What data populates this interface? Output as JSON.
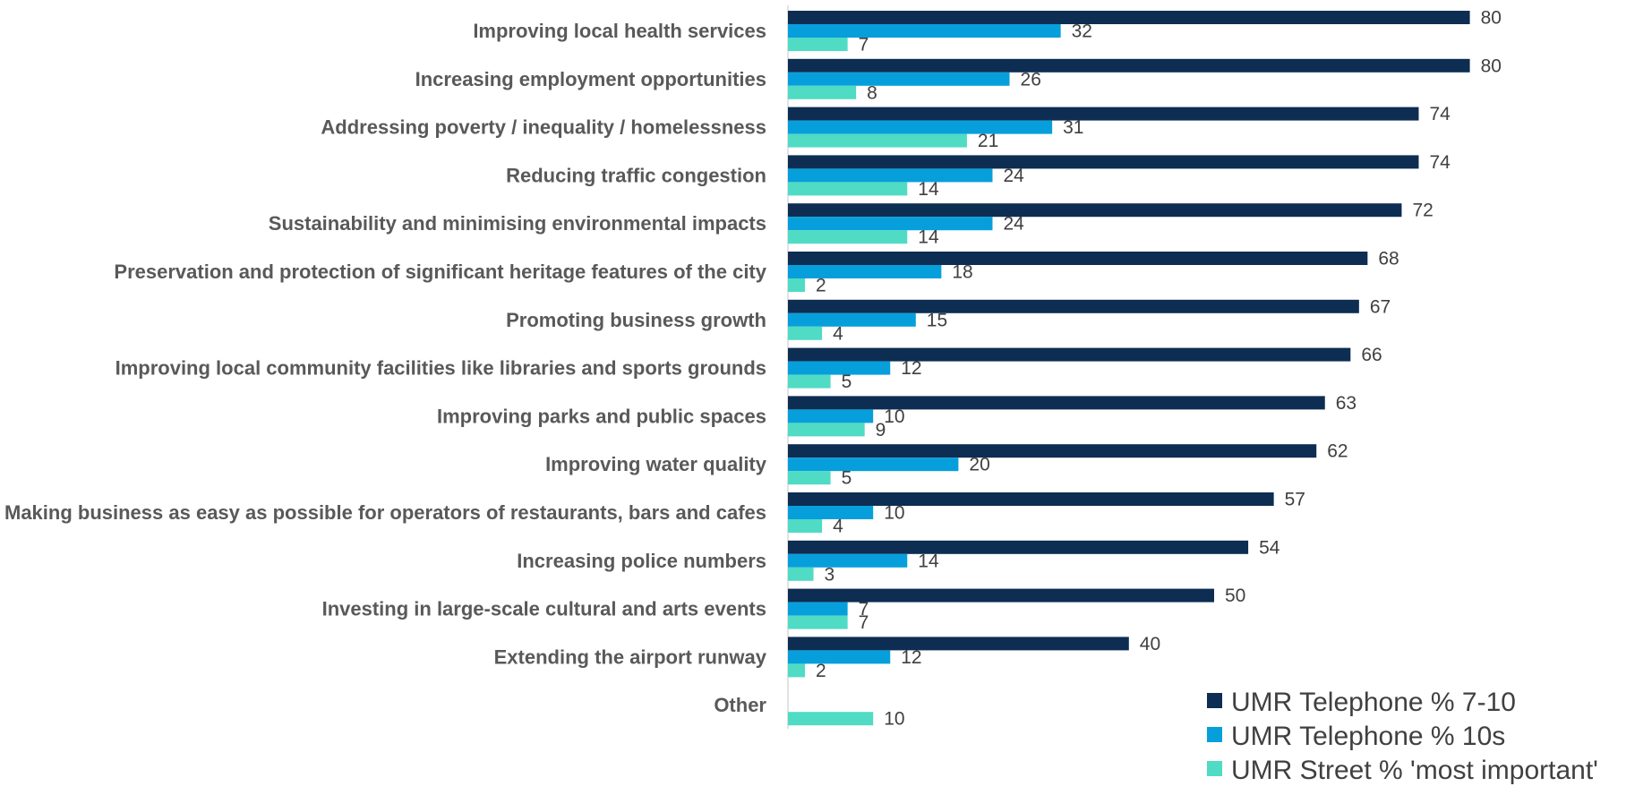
{
  "chart_data": {
    "type": "bar",
    "orientation": "horizontal",
    "categories": [
      "Improving local health services",
      "Increasing employment opportunities",
      "Addressing poverty / inequality / homelessness",
      "Reducing traffic congestion",
      "Sustainability  and minimising environmental impacts",
      "Preservation and protection of significant heritage features of the city",
      "Promoting business growth",
      "Improving local community facilities like libraries and sports grounds",
      "Improving parks and public spaces",
      "Improving water quality",
      "Making business as easy as possible for operators of restaurants, bars and cafes",
      "Increasing police numbers",
      "Investing in large-scale cultural and arts events",
      "Extending the airport runway",
      "Other"
    ],
    "series": [
      {
        "name": "UMR Telephone % 7-10",
        "color": "#0d2d52",
        "values": [
          80,
          80,
          74,
          74,
          72,
          68,
          67,
          66,
          63,
          62,
          57,
          54,
          50,
          40,
          null
        ]
      },
      {
        "name": "UMR Telephone % 10s",
        "color": "#069fdc",
        "values": [
          32,
          26,
          31,
          24,
          24,
          18,
          15,
          12,
          10,
          20,
          10,
          14,
          7,
          12,
          null
        ]
      },
      {
        "name": "UMR Street % 'most important'",
        "color": "#4fdbc4",
        "values": [
          7,
          8,
          21,
          14,
          14,
          2,
          4,
          5,
          9,
          5,
          4,
          3,
          7,
          2,
          10
        ]
      }
    ],
    "xlim": [
      0,
      100
    ],
    "legend_position": "bottom-right",
    "grid": false,
    "title": "",
    "xlabel": "",
    "ylabel": ""
  }
}
